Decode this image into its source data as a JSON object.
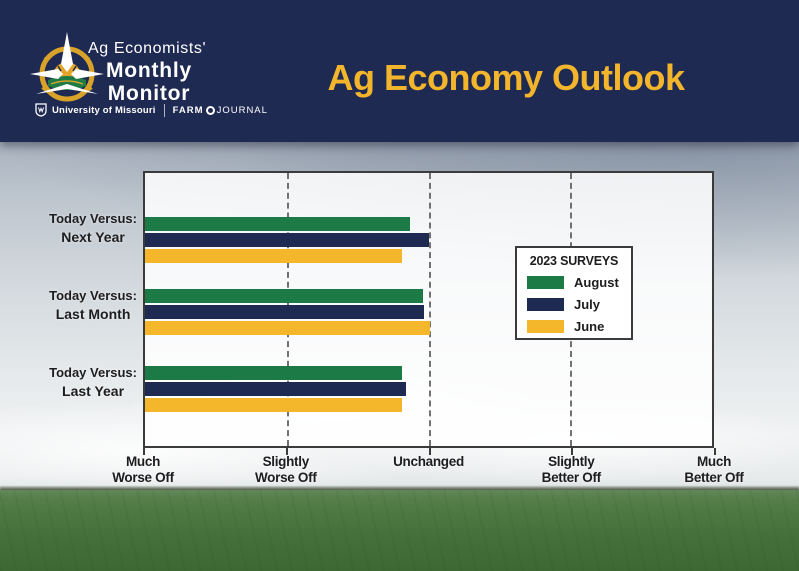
{
  "header": {
    "logo": {
      "brand_line1": "Ag Economists'",
      "brand_line2": "Monthly",
      "brand_line3": "Monitor",
      "university": "University of Missouri",
      "farm": "FARM",
      "journal": "JOURNAL"
    },
    "title": "Ag Economy Outlook",
    "colors": {
      "background": "#1F2A52",
      "title": "#F2B52B"
    }
  },
  "chart_data": {
    "type": "bar",
    "orientation": "horizontal",
    "title": "Ag Economy Outlook",
    "categories": [
      "Today Versus: Next Year",
      "Today Versus: Last Month",
      "Today Versus: Last Year"
    ],
    "category_labels": [
      {
        "line1": "Today Versus:",
        "line2": "Next Year"
      },
      {
        "line1": "Today Versus:",
        "line2": "Last Month"
      },
      {
        "line1": "Today Versus:",
        "line2": "Last Year"
      }
    ],
    "series": [
      {
        "name": "August",
        "color": "#1B7A46",
        "values": [
          2.87,
          2.96,
          2.81
        ]
      },
      {
        "name": "July",
        "color": "#1F2A52",
        "values": [
          3.0,
          2.97,
          2.84
        ]
      },
      {
        "name": "June",
        "color": "#F4B62B",
        "values": [
          2.81,
          3.01,
          2.81
        ]
      }
    ],
    "x_axis": {
      "range": [
        1,
        5
      ],
      "scale_note": "1=Much Worse Off, 3=Unchanged, 5=Much Better Off",
      "tick_labels": [
        {
          "line1": "Much",
          "line2": "Worse Off"
        },
        {
          "line1": "Slightly",
          "line2": "Worse Off"
        },
        {
          "line1": "Unchanged",
          "line2": ""
        },
        {
          "line1": "Slightly",
          "line2": "Better Off"
        },
        {
          "line1": "Much",
          "line2": "Better Off"
        }
      ],
      "gridlines": "dashed-vertical"
    },
    "legend": {
      "title": "2023 SURVEYS",
      "position": "center-right"
    }
  }
}
